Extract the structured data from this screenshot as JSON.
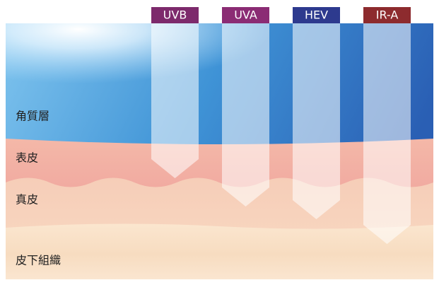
{
  "rays": [
    {
      "label": "UVB",
      "color": "#7d2a6c"
    },
    {
      "label": "UVA",
      "color": "#8b2c74"
    },
    {
      "label": "HEV",
      "color": "#2d3a8e"
    },
    {
      "label": "IR-A",
      "color": "#8d2b2e"
    }
  ],
  "layers": [
    "角質層",
    "表皮",
    "真皮",
    "皮下組織"
  ]
}
